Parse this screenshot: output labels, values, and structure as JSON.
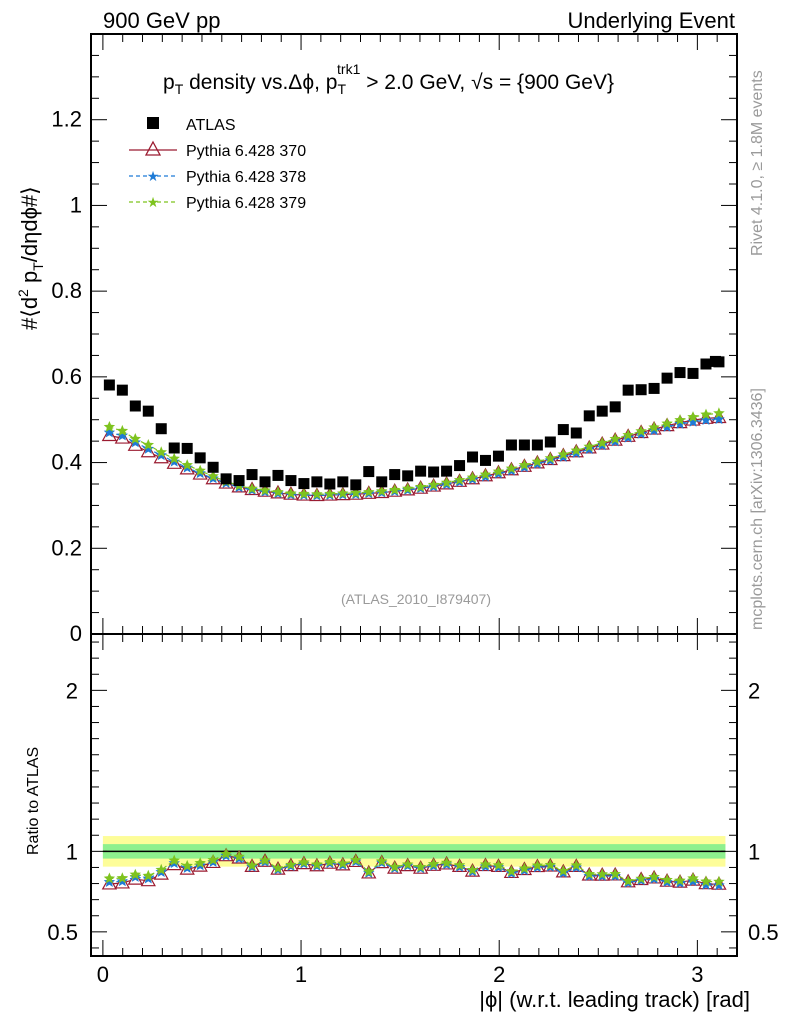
{
  "header": {
    "left": "900 GeV pp",
    "right": "Underlying Event"
  },
  "title": {
    "p": "p",
    "sub_T": "T",
    "density_vs": " density vs.",
    "delta_phi": "Δϕ",
    "comma_p": ", p",
    "sub_T2": "T",
    "sup_trk1": "trk1",
    "cut": " > 2.0 GeV, ",
    "sqrt": "√s",
    "energy": " = {900 GeV}"
  },
  "side_labels": {
    "rivet": "Rivet 4.1.0, ≥ 1.8M events",
    "mcplots": "mcplots.cern.ch [arXiv:1306.3436]"
  },
  "analysis_id": "(ATLAS_2010_I879407)",
  "ylabel_main": {
    "prefix": "#⟨d",
    "sup2": "2",
    "p": " p",
    "subT": "T",
    "suffix": "/dηdϕ#⟩"
  },
  "ylabel_ratio": "Ratio to ATLAS",
  "xlabel": "|ϕ| (w.r.t. leading track) [rad]",
  "colors": {
    "data": "#000000",
    "p370": "#9b1b30",
    "p378": "#1e7bd6",
    "p379": "#7ec31f",
    "band_inner": "#8ef08e",
    "band_outer": "#fdfd99"
  },
  "legend": {
    "data": "ATLAS",
    "p370": "Pythia 6.428 370",
    "p378": "Pythia 6.428 378",
    "p379": "Pythia 6.428 379"
  },
  "chart_data": {
    "type": "scatter",
    "xlim": [
      -0.06,
      3.2
    ],
    "ylim_main": [
      0,
      1.4
    ],
    "ylim_ratio": [
      0.35,
      2.35
    ],
    "y_ticks_main": [
      {
        "v": 0,
        "label": "0"
      },
      {
        "v": 0.2,
        "label": "0.2"
      },
      {
        "v": 0.4,
        "label": "0.4"
      },
      {
        "v": 0.6,
        "label": "0.6"
      },
      {
        "v": 0.8,
        "label": "0.8"
      },
      {
        "v": 1.0,
        "label": "1"
      },
      {
        "v": 1.2,
        "label": "1.2"
      }
    ],
    "y_ticks_ratio": [
      {
        "v": 0.5,
        "label": "0.5"
      },
      {
        "v": 1,
        "label": "1"
      },
      {
        "v": 2,
        "label": "2"
      }
    ],
    "x_ticks": [
      {
        "v": 0,
        "label": "0"
      },
      {
        "v": 1,
        "label": "1"
      },
      {
        "v": 2,
        "label": "2"
      },
      {
        "v": 3,
        "label": "3"
      }
    ],
    "x": [
      0.0327,
      0.0982,
      0.1636,
      0.2291,
      0.2945,
      0.36,
      0.4254,
      0.4909,
      0.5563,
      0.6218,
      0.6872,
      0.7527,
      0.8181,
      0.8836,
      0.949,
      1.0145,
      1.0799,
      1.1454,
      1.2108,
      1.2763,
      1.3417,
      1.4072,
      1.4726,
      1.5381,
      1.6035,
      1.669,
      1.7344,
      1.7999,
      1.8653,
      1.9308,
      1.9962,
      2.0617,
      2.1271,
      2.1926,
      2.258,
      2.3235,
      2.3889,
      2.4544,
      2.5198,
      2.5853,
      2.6507,
      2.7162,
      2.7816,
      2.8471,
      2.9125,
      2.978,
      3.0434,
      3.1089
    ],
    "atlas": [
      0.581,
      0.569,
      0.532,
      0.52,
      0.479,
      0.434,
      0.433,
      0.411,
      0.389,
      0.362,
      0.358,
      0.372,
      0.355,
      0.37,
      0.358,
      0.351,
      0.355,
      0.35,
      0.355,
      0.348,
      0.379,
      0.355,
      0.372,
      0.369,
      0.38,
      0.378,
      0.38,
      0.393,
      0.413,
      0.405,
      0.415,
      0.441,
      0.441,
      0.441,
      0.448,
      0.477,
      0.469,
      0.509,
      0.52,
      0.53,
      0.569,
      0.57,
      0.573,
      0.597,
      0.61,
      0.608,
      0.63,
      0.635
    ],
    "atlas_ext": 0.636,
    "p370": [
      0.463,
      0.457,
      0.44,
      0.425,
      0.411,
      0.398,
      0.385,
      0.373,
      0.362,
      0.352,
      0.343,
      0.337,
      0.333,
      0.329,
      0.326,
      0.324,
      0.323,
      0.324,
      0.325,
      0.326,
      0.328,
      0.33,
      0.333,
      0.336,
      0.34,
      0.345,
      0.35,
      0.356,
      0.362,
      0.369,
      0.376,
      0.383,
      0.391,
      0.399,
      0.407,
      0.416,
      0.425,
      0.434,
      0.443,
      0.452,
      0.461,
      0.47,
      0.478,
      0.486,
      0.493,
      0.499,
      0.503,
      0.505
    ],
    "p378": [
      0.47,
      0.463,
      0.447,
      0.432,
      0.417,
      0.402,
      0.388,
      0.375,
      0.363,
      0.352,
      0.342,
      0.336,
      0.332,
      0.328,
      0.325,
      0.324,
      0.323,
      0.324,
      0.325,
      0.326,
      0.328,
      0.33,
      0.333,
      0.336,
      0.34,
      0.344,
      0.349,
      0.355,
      0.361,
      0.367,
      0.374,
      0.381,
      0.389,
      0.397,
      0.405,
      0.413,
      0.422,
      0.431,
      0.44,
      0.449,
      0.458,
      0.467,
      0.475,
      0.483,
      0.49,
      0.495,
      0.499,
      0.501
    ],
    "p379": [
      0.483,
      0.474,
      0.455,
      0.441,
      0.424,
      0.409,
      0.394,
      0.381,
      0.368,
      0.356,
      0.346,
      0.339,
      0.335,
      0.331,
      0.328,
      0.327,
      0.326,
      0.327,
      0.328,
      0.329,
      0.331,
      0.333,
      0.336,
      0.339,
      0.343,
      0.348,
      0.353,
      0.359,
      0.365,
      0.372,
      0.379,
      0.386,
      0.394,
      0.402,
      0.41,
      0.419,
      0.428,
      0.437,
      0.446,
      0.455,
      0.464,
      0.473,
      0.482,
      0.491,
      0.499,
      0.506,
      0.512,
      0.515
    ],
    "band_inner": [
      0.955,
      1.045
    ],
    "band_outer": [
      0.905,
      1.095
    ]
  }
}
